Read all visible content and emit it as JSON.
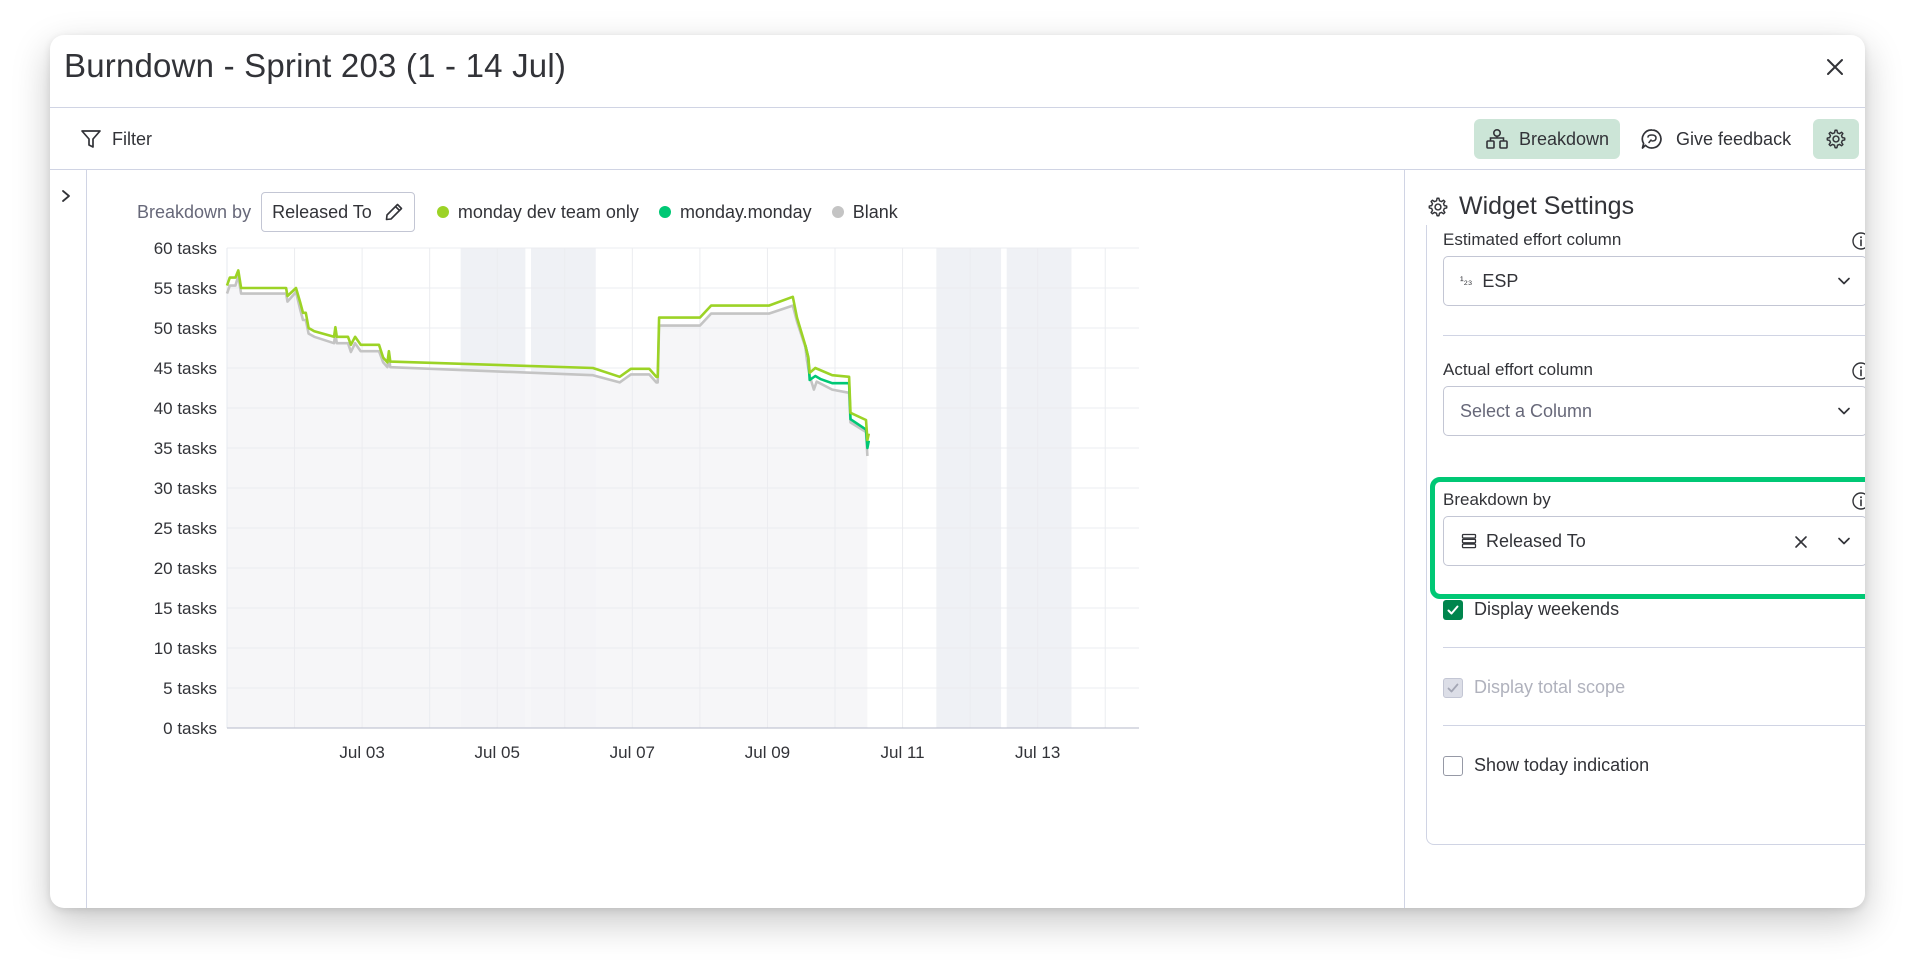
{
  "modal": {
    "title": "Burndown - Sprint 203 (1 - 14 Jul)"
  },
  "toolbar": {
    "filter_label": "Filter",
    "breakdown_label": "Breakdown",
    "feedback_label": "Give feedback"
  },
  "chart_controls": {
    "breakdown_by_label": "Breakdown by",
    "breakdown_value": "Released To",
    "legend": [
      {
        "label": "monday dev team only",
        "color": "#9cd326"
      },
      {
        "label": "monday.monday",
        "color": "#00c875"
      },
      {
        "label": "Blank",
        "color": "#c4c4c4"
      }
    ]
  },
  "chart_data": {
    "type": "line",
    "title": "",
    "xlabel": "",
    "ylabel": "",
    "ylim": [
      0,
      60
    ],
    "y_ticks": [
      "0 tasks",
      "5 tasks",
      "10 tasks",
      "15 tasks",
      "20 tasks",
      "25 tasks",
      "30 tasks",
      "35 tasks",
      "40 tasks",
      "45 tasks",
      "50 tasks",
      "55 tasks",
      "60 tasks"
    ],
    "x_ticks": [
      {
        "date": "2024-07-03",
        "label": "Jul 03"
      },
      {
        "date": "2024-07-05",
        "label": "Jul 05"
      },
      {
        "date": "2024-07-07",
        "label": "Jul 07"
      },
      {
        "date": "2024-07-09",
        "label": "Jul 09"
      },
      {
        "date": "2024-07-11",
        "label": "Jul 11"
      },
      {
        "date": "2024-07-13",
        "label": "Jul 13"
      }
    ],
    "x_range": [
      "2024-07-01 00:00",
      "2024-07-14 12:00"
    ],
    "weekend_bands": [
      [
        "2024-07-04 11:00",
        "2024-07-05 10:00"
      ],
      [
        "2024-07-05 12:00",
        "2024-07-06 11:00"
      ],
      [
        "2024-07-11 12:00",
        "2024-07-12 11:00"
      ],
      [
        "2024-07-12 13:00",
        "2024-07-13 12:00"
      ]
    ],
    "series": [
      {
        "name": "Blank",
        "color": "#c4c4c4",
        "points": [
          [
            "2024-07-01 00:00",
            54.3
          ],
          [
            "2024-07-01 01:00",
            55.3
          ],
          [
            "2024-07-01 03:00",
            55.3
          ],
          [
            "2024-07-01 04:00",
            56.5
          ],
          [
            "2024-07-01 05:00",
            54.3
          ],
          [
            "2024-07-01 21:00",
            54.3
          ],
          [
            "2024-07-01 21:30",
            53.3
          ],
          [
            "2024-07-02 00:30",
            54.5
          ],
          [
            "2024-07-02 02:00",
            52.3
          ],
          [
            "2024-07-02 03:00",
            51
          ],
          [
            "2024-07-02 04:00",
            51
          ],
          [
            "2024-07-02 05:00",
            49.3
          ],
          [
            "2024-07-02 07:00",
            48.9
          ],
          [
            "2024-07-02 14:00",
            48.1
          ],
          [
            "2024-07-02 14:30",
            49.3
          ],
          [
            "2024-07-02 15:00",
            48.1
          ],
          [
            "2024-07-02 19:00",
            48.1
          ],
          [
            "2024-07-02 20:00",
            47
          ],
          [
            "2024-07-02 21:30",
            48.1
          ],
          [
            "2024-07-02 23:30",
            47.1
          ],
          [
            "2024-07-03 05:00",
            47.1
          ],
          [
            "2024-07-03 06:00",
            47.1
          ],
          [
            "2024-07-03 07:30",
            45.7
          ],
          [
            "2024-07-03 09:00",
            45.1
          ],
          [
            "2024-07-03 09:30",
            46.3
          ],
          [
            "2024-07-03 10:00",
            45.1
          ],
          [
            "2024-07-06 10:00",
            44.1
          ],
          [
            "2024-07-06 19:30",
            43.2
          ],
          [
            "2024-07-06 23:30",
            44.2
          ],
          [
            "2024-07-07 06:00",
            44.2
          ],
          [
            "2024-07-07 08:30",
            43.2
          ],
          [
            "2024-07-07 09:00",
            43.2
          ],
          [
            "2024-07-07 09:30",
            50.3
          ],
          [
            "2024-07-08 00:00",
            50.3
          ],
          [
            "2024-07-08 04:00",
            51.8
          ],
          [
            "2024-07-09 00:30",
            51.8
          ],
          [
            "2024-07-09 09:00",
            52.8
          ],
          [
            "2024-07-09 10:30",
            50.8
          ],
          [
            "2024-07-09 13:30",
            47.6
          ],
          [
            "2024-07-09 14:00",
            46
          ],
          [
            "2024-07-09 15:00",
            44
          ],
          [
            "2024-07-09 16:30",
            42.3
          ],
          [
            "2024-07-09 17:30",
            43.3
          ],
          [
            "2024-07-09 23:00",
            42.3
          ],
          [
            "2024-07-10 05:00",
            41.9
          ],
          [
            "2024-07-10 05:30",
            38.2
          ],
          [
            "2024-07-10 11:00",
            37
          ],
          [
            "2024-07-10 11:30",
            34
          ]
        ]
      },
      {
        "name": "monday.monday",
        "color": "#00c875",
        "points": [
          [
            "2024-07-09 13:30",
            47.8
          ],
          [
            "2024-07-09 14:30",
            46.3
          ],
          [
            "2024-07-09 15:00",
            43.5
          ],
          [
            "2024-07-09 17:00",
            44
          ],
          [
            "2024-07-09 19:00",
            43.6
          ],
          [
            "2024-07-09 23:00",
            43.1
          ],
          [
            "2024-07-10 05:00",
            43.1
          ],
          [
            "2024-07-10 05:30",
            38.6
          ],
          [
            "2024-07-10 11:00",
            37.3
          ],
          [
            "2024-07-10 11:30",
            35
          ],
          [
            "2024-07-10 12:00",
            35.9
          ]
        ]
      },
      {
        "name": "monday dev team only",
        "color": "#9cd326",
        "points": [
          [
            "2024-07-01 00:00",
            55.3
          ],
          [
            "2024-07-01 01:00",
            56.3
          ],
          [
            "2024-07-01 03:00",
            56.3
          ],
          [
            "2024-07-01 04:00",
            57.2
          ],
          [
            "2024-07-01 05:00",
            55
          ],
          [
            "2024-07-01 21:00",
            55
          ],
          [
            "2024-07-01 21:30",
            54
          ],
          [
            "2024-07-02 00:30",
            55
          ],
          [
            "2024-07-02 02:00",
            53.2
          ],
          [
            "2024-07-02 03:00",
            51.9
          ],
          [
            "2024-07-02 04:00",
            51.9
          ],
          [
            "2024-07-02 05:00",
            50
          ],
          [
            "2024-07-02 07:00",
            49.6
          ],
          [
            "2024-07-02 14:00",
            48.9
          ],
          [
            "2024-07-02 14:30",
            50.1
          ],
          [
            "2024-07-02 15:00",
            48.9
          ],
          [
            "2024-07-02 19:00",
            48.9
          ],
          [
            "2024-07-02 20:00",
            47.9
          ],
          [
            "2024-07-02 21:30",
            48.9
          ],
          [
            "2024-07-02 23:30",
            47.9
          ],
          [
            "2024-07-03 05:00",
            47.9
          ],
          [
            "2024-07-03 06:00",
            47.9
          ],
          [
            "2024-07-03 07:30",
            46.3
          ],
          [
            "2024-07-03 09:00",
            45.7
          ],
          [
            "2024-07-03 09:30",
            47.1
          ],
          [
            "2024-07-03 10:00",
            45.8
          ],
          [
            "2024-07-06 10:00",
            45
          ],
          [
            "2024-07-06 19:30",
            43.9
          ],
          [
            "2024-07-06 23:30",
            44.9
          ],
          [
            "2024-07-07 06:00",
            44.9
          ],
          [
            "2024-07-07 08:30",
            43.9
          ],
          [
            "2024-07-07 09:00",
            43.9
          ],
          [
            "2024-07-07 09:30",
            51.3
          ],
          [
            "2024-07-08 00:00",
            51.3
          ],
          [
            "2024-07-08 04:00",
            52.8
          ],
          [
            "2024-07-09 00:30",
            52.8
          ],
          [
            "2024-07-09 09:00",
            53.9
          ],
          [
            "2024-07-09 10:30",
            51.3
          ],
          [
            "2024-07-09 13:30",
            47.8
          ],
          [
            "2024-07-09 14:30",
            46.3
          ],
          [
            "2024-07-09 15:00",
            44.4
          ],
          [
            "2024-07-09 17:00",
            45
          ],
          [
            "2024-07-09 23:00",
            44.1
          ],
          [
            "2024-07-10 05:00",
            43.9
          ],
          [
            "2024-07-10 05:30",
            39.4
          ],
          [
            "2024-07-10 11:00",
            38.5
          ],
          [
            "2024-07-10 11:30",
            36
          ],
          [
            "2024-07-10 12:00",
            36.8
          ]
        ]
      }
    ],
    "area_fill": "#f5f5f7",
    "weekend_color": "#eff1f5",
    "grid": true
  },
  "settings": {
    "title": "Widget Settings",
    "estimated_effort_label": "Estimated effort column",
    "estimated_effort_value": "ESP",
    "estimated_effort_icon": "¹₂₃",
    "actual_effort_label": "Actual effort column",
    "actual_effort_placeholder": "Select a Column",
    "breakdown_by_label": "Breakdown by",
    "breakdown_by_value": "Released To",
    "display_weekends_label": "Display weekends",
    "display_weekends_checked": true,
    "display_total_scope_label": "Display total scope",
    "display_total_scope_checked": true,
    "display_total_scope_disabled": true,
    "show_today_label": "Show today indication",
    "show_today_checked": false,
    "highlight_color": "#00c875"
  }
}
